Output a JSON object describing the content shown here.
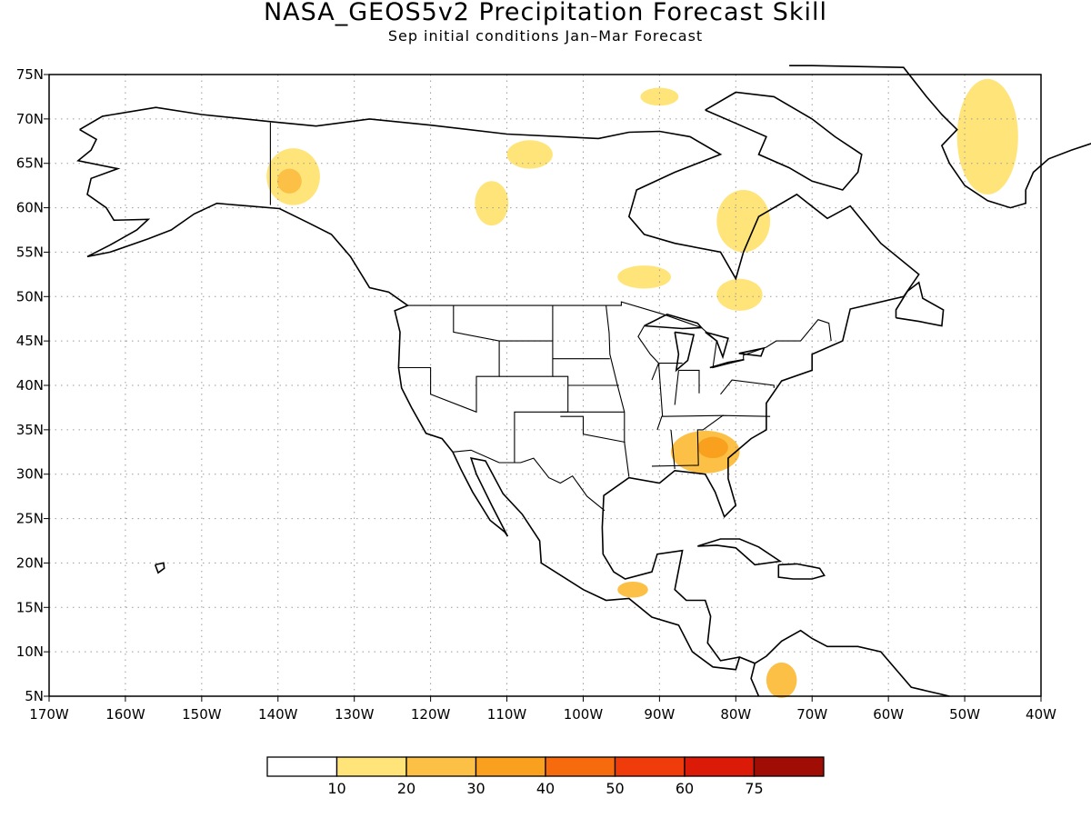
{
  "title": "NASA_GEOS5v2 Precipitation Forecast Skill",
  "subtitle": "Sep initial conditions  Jan–Mar Forecast",
  "map": {
    "lon_range": [
      -170,
      -40
    ],
    "lat_range": [
      5,
      75
    ],
    "grid": true,
    "lat_ticks": [
      "75N",
      "70N",
      "65N",
      "60N",
      "55N",
      "50N",
      "45N",
      "40N",
      "35N",
      "30N",
      "25N",
      "20N",
      "15N",
      "10N",
      "5N"
    ],
    "lon_ticks": [
      "170W",
      "160W",
      "150W",
      "140W",
      "130W",
      "120W",
      "110W",
      "100W",
      "90W",
      "80W",
      "70W",
      "60W",
      "50W",
      "40W"
    ]
  },
  "colors": {
    "c0": "#ffffff",
    "c10": "#ffe47a",
    "c20": "#fbc045",
    "c30": "#f9a11e",
    "c40": "#f66b0e",
    "c50": "#f03c0b",
    "c60": "#dc1a08",
    "c75": "#a00d05"
  },
  "colorbar": {
    "labels": [
      "10",
      "20",
      "30",
      "40",
      "50",
      "60",
      "75"
    ],
    "colors": [
      "#ffffff",
      "#ffe47a",
      "#fbc045",
      "#f9a11e",
      "#f66b0e",
      "#f03c0b",
      "#dc1a08",
      "#a00d05"
    ]
  },
  "skill_regions": [
    {
      "name": "alaska-yukon",
      "lon": -138,
      "lat": 63.5,
      "rx": 3.5,
      "ry": 3.2,
      "level": 10
    },
    {
      "name": "alaska-yukon-core",
      "lon": -138.5,
      "lat": 63,
      "rx": 1.6,
      "ry": 1.4,
      "level": 20
    },
    {
      "name": "baffin-west",
      "lon": -107,
      "lat": 66,
      "rx": 3,
      "ry": 1.6,
      "level": 10
    },
    {
      "name": "canada-central",
      "lon": -112,
      "lat": 60.5,
      "rx": 2.2,
      "ry": 2.5,
      "level": 10
    },
    {
      "name": "quebec",
      "lon": -79,
      "lat": 58.5,
      "rx": 3.5,
      "ry": 3.5,
      "level": 10
    },
    {
      "name": "ontario",
      "lon": -92,
      "lat": 52.2,
      "rx": 3.5,
      "ry": 1.3,
      "level": 10
    },
    {
      "name": "quebec-south",
      "lon": -79.5,
      "lat": 50.2,
      "rx": 3,
      "ry": 1.8,
      "level": 10
    },
    {
      "name": "greenland-east",
      "lon": -47,
      "lat": 68,
      "rx": 4,
      "ry": 6.5,
      "level": 10
    },
    {
      "name": "southeast-us",
      "lon": -84,
      "lat": 32.5,
      "rx": 4.5,
      "ry": 2.4,
      "level": 20
    },
    {
      "name": "southeast-us-core",
      "lon": -83,
      "lat": 33,
      "rx": 2,
      "ry": 1.2,
      "level": 30
    },
    {
      "name": "mexico-south",
      "lon": -93.5,
      "lat": 17,
      "rx": 2,
      "ry": 0.9,
      "level": 20
    },
    {
      "name": "colombia",
      "lon": -74,
      "lat": 6.8,
      "rx": 2,
      "ry": 2,
      "level": 20
    },
    {
      "name": "ellesmere",
      "lon": -90,
      "lat": 72.5,
      "rx": 2.5,
      "ry": 1,
      "level": 10
    }
  ]
}
